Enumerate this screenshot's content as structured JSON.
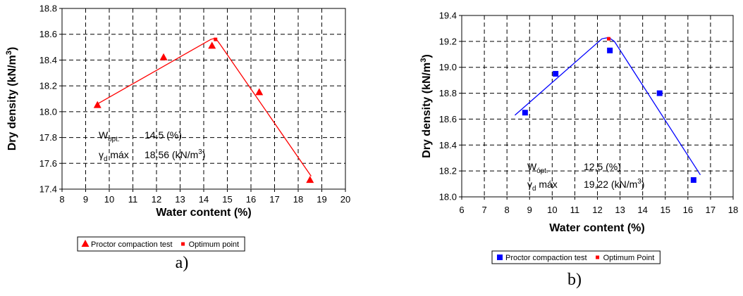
{
  "chart_data": [
    {
      "type": "scatter",
      "panel_label": "a)",
      "x_label": "Water content (%)",
      "y_label": [
        {
          "text": "Dry density (kN/m"
        },
        {
          "text": "3",
          "pos": "sup"
        },
        {
          "text": ")"
        }
      ],
      "xlim": [
        8,
        20
      ],
      "xticks": [
        8,
        9,
        10,
        11,
        12,
        13,
        14,
        15,
        16,
        17,
        18,
        19,
        20
      ],
      "ylim": [
        17.4,
        18.8
      ],
      "yticks": [
        17.4,
        17.6,
        17.8,
        {
          "value": 18,
          "label": "18.0"
        },
        18.2,
        18.4,
        18.6,
        18.8
      ],
      "grid": true,
      "series": [
        {
          "name": "Proctor compaction test",
          "color": "#ff0000",
          "marker": "triangle",
          "x": [
            9.5,
            12.3,
            14.35,
            16.35,
            18.5
          ],
          "values": [
            18.05,
            18.42,
            18.51,
            18.15,
            17.47
          ]
        },
        {
          "name": "Optimum point",
          "color": "#ff0000",
          "marker": "point",
          "x": [
            14.5
          ],
          "values": [
            18.56
          ]
        }
      ],
      "trend": {
        "color": "#ff0000",
        "x": [
          9.5,
          14.3,
          14.5,
          14.7,
          18.55
        ],
        "values": [
          18.06,
          18.56,
          18.57,
          18.52,
          17.5
        ]
      },
      "annotations": [
        {
          "name": [
            {
              "text": "W"
            },
            {
              "text": "opt.",
              "pos": "sub"
            }
          ],
          "value": [
            {
              "text": "14.5  (%)"
            }
          ]
        },
        {
          "name": [
            {
              "text": "γ"
            },
            {
              "text": "d",
              "pos": "sub"
            },
            {
              "text": " máx"
            }
          ],
          "value": [
            {
              "text": "18.56 (kN/m"
            },
            {
              "text": "3",
              "pos": "sup"
            },
            {
              "text": ")"
            }
          ]
        }
      ]
    },
    {
      "type": "scatter",
      "panel_label": "b)",
      "x_label": "Water content (%)",
      "y_label": [
        {
          "text": "Dry density (kN/m"
        },
        {
          "text": "3",
          "pos": "sup"
        },
        {
          "text": ")"
        }
      ],
      "xlim": [
        6,
        18
      ],
      "xticks": [
        6,
        7,
        8,
        9,
        10,
        11,
        12,
        13,
        14,
        15,
        16,
        17,
        18
      ],
      "ylim": [
        18,
        19.4
      ],
      "yticks": [
        {
          "value": 18,
          "label": "18.0"
        },
        18.2,
        18.4,
        18.6,
        18.8,
        {
          "value": 19,
          "label": "19.0"
        },
        19.2,
        19.4
      ],
      "grid": true,
      "series": [
        {
          "name": "Proctor compaction test",
          "color": "#0000ff",
          "marker": "square",
          "x": [
            8.8,
            10.15,
            12.55,
            14.75,
            16.25
          ],
          "values": [
            18.65,
            18.95,
            19.13,
            18.8,
            18.13
          ]
        },
        {
          "name": "Optimum Point",
          "color": "#ff0000",
          "marker": "point",
          "x": [
            12.5
          ],
          "values": [
            19.22
          ]
        }
      ],
      "trend": {
        "color": "#0000ff",
        "x": [
          8.35,
          12.2,
          12.5,
          12.75,
          16.55
        ],
        "values": [
          18.63,
          19.22,
          19.23,
          19.2,
          18.17
        ]
      },
      "annotations": [
        {
          "name": [
            {
              "text": "W"
            },
            {
              "text": "ópt.",
              "pos": "sub"
            }
          ],
          "value": [
            {
              "text": "12,5  (%)"
            }
          ]
        },
        {
          "name": [
            {
              "text": "γ"
            },
            {
              "text": "d",
              "pos": "sub"
            },
            {
              "text": " máx"
            }
          ],
          "value": [
            {
              "text": "19,22 (kN/m"
            },
            {
              "text": "3",
              "pos": "sup"
            },
            {
              "text": ")"
            }
          ]
        }
      ]
    }
  ]
}
